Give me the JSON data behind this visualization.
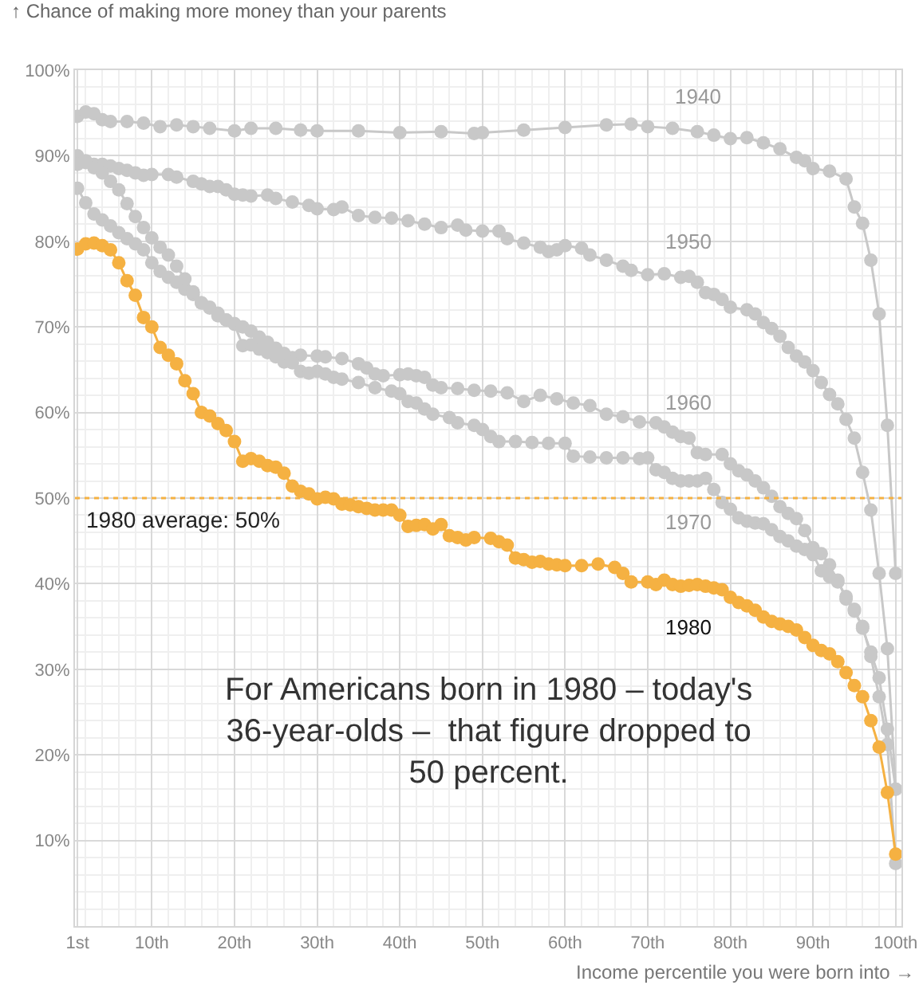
{
  "chart_data": {
    "type": "line",
    "xlabel": "Income percentile you were born into →",
    "ylabel": "↑ Chance of making more money than your parents",
    "xlim": [
      0.7,
      100.7
    ],
    "ylim": [
      0,
      100
    ],
    "xticks": [
      {
        "value": 1,
        "label": "1st"
      },
      {
        "value": 10,
        "label": "10th"
      },
      {
        "value": 20,
        "label": "20th"
      },
      {
        "value": 30,
        "label": "30th"
      },
      {
        "value": 40,
        "label": "40th"
      },
      {
        "value": 50,
        "label": "50th"
      },
      {
        "value": 60,
        "label": "60th"
      },
      {
        "value": 70,
        "label": "70th"
      },
      {
        "value": 80,
        "label": "80th"
      },
      {
        "value": 90,
        "label": "90th"
      },
      {
        "value": 100,
        "label": "100th"
      }
    ],
    "yticks": [
      {
        "value": 10,
        "label": "10%"
      },
      {
        "value": 20,
        "label": "20%"
      },
      {
        "value": 30,
        "label": "30%"
      },
      {
        "value": 40,
        "label": "40%"
      },
      {
        "value": 50,
        "label": "50%"
      },
      {
        "value": 60,
        "label": "60%"
      },
      {
        "value": 70,
        "label": "70%"
      },
      {
        "value": 80,
        "label": "80%"
      },
      {
        "value": 90,
        "label": "90%"
      },
      {
        "value": 100,
        "label": "100%"
      }
    ],
    "grid": true,
    "marker": "circle",
    "line_style": "solid",
    "legend": false,
    "series": [
      {
        "name": "1940",
        "color": "#c8c8c8",
        "x": [
          1,
          2,
          3,
          4,
          5,
          7,
          9,
          11,
          13,
          15,
          17,
          20,
          22,
          25,
          28,
          30,
          35,
          40,
          45,
          49,
          50,
          55,
          60,
          65,
          68,
          70,
          73,
          76,
          78,
          80,
          82,
          84,
          86,
          88,
          89,
          90,
          92,
          94,
          95,
          96,
          97,
          98,
          99,
          100
        ],
        "values": [
          94.6,
          95.1,
          94.9,
          94.2,
          94,
          94,
          93.8,
          93.4,
          93.6,
          93.4,
          93.2,
          92.9,
          93.2,
          93.2,
          93,
          92.9,
          92.9,
          92.7,
          92.8,
          92.6,
          92.7,
          93,
          93.3,
          93.6,
          93.7,
          93.4,
          93.2,
          92.8,
          92.4,
          92,
          92.1,
          91.5,
          90.8,
          89.8,
          89.4,
          88.5,
          88.2,
          87.3,
          84,
          82.1,
          77.8,
          71.5,
          58.5,
          41.2
        ]
      },
      {
        "name": "1950",
        "color": "#c8c8c8",
        "x": [
          1,
          2,
          3,
          4,
          5,
          6,
          7,
          8,
          9,
          10,
          12,
          13,
          15,
          16,
          17,
          18,
          19,
          20,
          21,
          22,
          24,
          25,
          27,
          29,
          30,
          32,
          33,
          35,
          37,
          39,
          41,
          43,
          45,
          47,
          48,
          50,
          52,
          53,
          55,
          57,
          58,
          59,
          60,
          62,
          63,
          65,
          67,
          68,
          70,
          72,
          74,
          75,
          76,
          77,
          78,
          79,
          80,
          82,
          83,
          84,
          85,
          86,
          87,
          88,
          89,
          90,
          91,
          92,
          93,
          94,
          95,
          96,
          97,
          98,
          99,
          100
        ],
        "values": [
          90,
          89.4,
          89,
          89,
          88.8,
          88.5,
          88.3,
          88,
          87.7,
          87.8,
          87.8,
          87.5,
          87,
          86.7,
          86.4,
          86.4,
          86,
          85.5,
          85.4,
          85.3,
          85.4,
          85,
          84.6,
          84.2,
          83.8,
          83.7,
          84,
          83,
          82.8,
          82.7,
          82.4,
          82,
          81.6,
          81.9,
          81.3,
          81.2,
          81.2,
          80.3,
          79.8,
          79.3,
          78.8,
          79,
          79.5,
          79.2,
          78.4,
          77.8,
          77.1,
          76.6,
          76.1,
          76.2,
          75.8,
          75.9,
          75.2,
          74,
          73.8,
          73.2,
          72.3,
          72,
          71.5,
          70.5,
          69.8,
          68.9,
          67.6,
          66.6,
          65.9,
          64.9,
          63.5,
          62.1,
          61,
          59.2,
          57,
          53,
          48.6,
          41.2,
          32.4,
          16
        ]
      },
      {
        "name": "1960",
        "color": "#c8c8c8",
        "x": [
          1,
          2,
          3,
          4,
          5,
          6,
          7,
          8,
          9,
          10,
          11,
          12,
          13,
          14,
          15,
          16,
          17,
          18,
          19,
          20,
          21,
          22,
          23,
          24,
          25,
          26,
          27,
          28,
          30,
          31,
          33,
          35,
          36,
          37,
          38,
          40,
          41,
          42,
          43,
          44,
          45,
          47,
          49,
          51,
          53,
          55,
          57,
          59,
          61,
          63,
          65,
          67,
          69,
          71,
          72,
          73,
          74,
          75,
          76,
          77,
          79,
          80,
          81,
          82,
          83,
          84,
          85,
          86,
          87,
          88,
          89,
          90,
          91,
          92,
          93,
          94,
          95,
          96,
          97,
          98,
          99,
          100
        ],
        "values": [
          86.2,
          84.5,
          83.2,
          82.5,
          81.8,
          81,
          80.3,
          79.7,
          79,
          77.5,
          76.5,
          75.8,
          75.2,
          74.4,
          73.8,
          72.8,
          72.3,
          71.6,
          70.8,
          70.3,
          67.8,
          67.9,
          67.4,
          67,
          66.5,
          65.9,
          66.4,
          66.7,
          66.6,
          66.5,
          66.3,
          65.7,
          65.2,
          64.5,
          64.3,
          64.4,
          64.5,
          64.3,
          64.1,
          63.2,
          62.9,
          62.8,
          62.6,
          62.5,
          62.3,
          61.3,
          62,
          61.6,
          61.1,
          60.8,
          59.8,
          59.5,
          58.9,
          58.8,
          58.3,
          57.7,
          57.2,
          57,
          55.3,
          55.1,
          55.1,
          54,
          53.2,
          52.7,
          52,
          51.2,
          50.2,
          49,
          48.2,
          47.6,
          46.2,
          44.2,
          43.5,
          42.2,
          40.2,
          38.5,
          37,
          34.8,
          32,
          29,
          23,
          16
        ]
      },
      {
        "name": "1970",
        "color": "#c8c8c8",
        "x": [
          1,
          2,
          3,
          4,
          5,
          6,
          7,
          8,
          9,
          10,
          11,
          12,
          13,
          14,
          15,
          16,
          17,
          18,
          19,
          20,
          21,
          22,
          23,
          24,
          25,
          26,
          27,
          28,
          29,
          30,
          31,
          32,
          33,
          35,
          37,
          39,
          40,
          41,
          42,
          43,
          44,
          46,
          47,
          49,
          50,
          51,
          52,
          54,
          56,
          58,
          60,
          61,
          63,
          65,
          67,
          69,
          70,
          71,
          72,
          73,
          74,
          75,
          76,
          77,
          78,
          79,
          80,
          81,
          82,
          83,
          84,
          85,
          86,
          87,
          88,
          89,
          90,
          91,
          92,
          93,
          94,
          95,
          96,
          97,
          98,
          99,
          100
        ],
        "values": [
          89,
          89.2,
          88.6,
          88,
          87,
          86,
          84.4,
          82.9,
          81.6,
          80.4,
          79.3,
          78.4,
          77.1,
          75.6,
          74.1,
          72.8,
          72.2,
          71.3,
          70.8,
          70.4,
          70,
          69.5,
          68.8,
          68.2,
          67.5,
          66.9,
          65.8,
          64.8,
          64.6,
          64.8,
          64.5,
          64.1,
          63.9,
          63.5,
          62.9,
          62.5,
          62.2,
          61.3,
          61.1,
          60.4,
          59.8,
          59.4,
          58.8,
          58.5,
          58,
          57.2,
          56.6,
          56.6,
          56.5,
          56.4,
          56.4,
          54.9,
          54.8,
          54.7,
          54.7,
          54.6,
          54.7,
          53.3,
          53,
          52.3,
          52,
          52,
          52,
          52.3,
          51,
          49.5,
          48.7,
          47.7,
          47.3,
          47.1,
          47,
          46.3,
          45.5,
          45,
          44.4,
          44,
          43.4,
          41.5,
          40.8,
          40.4,
          38.2,
          36.8,
          35,
          31.5,
          26.8,
          21.2,
          7.3
        ]
      },
      {
        "name": "1980",
        "color": "#f5b142",
        "x": [
          1,
          2,
          3,
          4,
          5,
          6,
          7,
          8,
          9,
          10,
          11,
          12,
          13,
          14,
          15,
          16,
          17,
          18,
          19,
          20,
          21,
          22,
          23,
          24,
          25,
          26,
          27,
          28,
          29,
          30,
          31,
          32,
          33,
          34,
          35,
          36,
          37,
          38,
          39,
          40,
          41,
          42,
          43,
          44,
          45,
          46,
          47,
          48,
          49,
          51,
          52,
          53,
          54,
          55,
          56,
          57,
          58,
          59,
          60,
          62,
          64,
          66,
          67,
          68,
          70,
          71,
          72,
          73,
          74,
          75,
          76,
          77,
          78,
          79,
          80,
          81,
          82,
          83,
          84,
          85,
          86,
          87,
          88,
          89,
          90,
          91,
          92,
          93,
          94,
          95,
          96,
          97,
          98,
          99,
          100
        ],
        "values": [
          79.1,
          79.7,
          79.8,
          79.5,
          79,
          77.5,
          75.4,
          73.7,
          71.1,
          70,
          67.6,
          66.7,
          65.7,
          63.7,
          62.2,
          60,
          59.6,
          58.7,
          57.9,
          56.6,
          54.3,
          54.6,
          54.3,
          53.8,
          53.6,
          52.9,
          51.4,
          50.8,
          50.5,
          49.9,
          50.1,
          49.9,
          49.3,
          49.2,
          49,
          48.8,
          48.6,
          48.6,
          48.6,
          48,
          46.7,
          46.8,
          46.9,
          46.4,
          46.9,
          45.6,
          45.4,
          45.1,
          45.4,
          45.3,
          44.9,
          44.5,
          43,
          42.8,
          42.5,
          42.6,
          42.3,
          42.2,
          42.1,
          42.1,
          42.3,
          41.9,
          41.2,
          40.2,
          40.2,
          39.9,
          40.4,
          39.9,
          39.7,
          39.8,
          39.9,
          39.7,
          39.5,
          39.3,
          38.4,
          37.8,
          37.4,
          36.9,
          36.1,
          35.6,
          35.3,
          35,
          34.6,
          33.7,
          32.8,
          32.2,
          31.8,
          30.9,
          29.6,
          28.1,
          26.8,
          24,
          20.9,
          15.6,
          8.4
        ]
      }
    ],
    "ref_lines": [
      {
        "axis": "y",
        "value": 50,
        "label": "1980 average: 50%",
        "color": "#f5b142",
        "line_style": "dotted"
      }
    ],
    "annotations": [
      "For Americans born in 1980 – today's\n36-year-olds –  that figure dropped to\n50 percent."
    ]
  }
}
